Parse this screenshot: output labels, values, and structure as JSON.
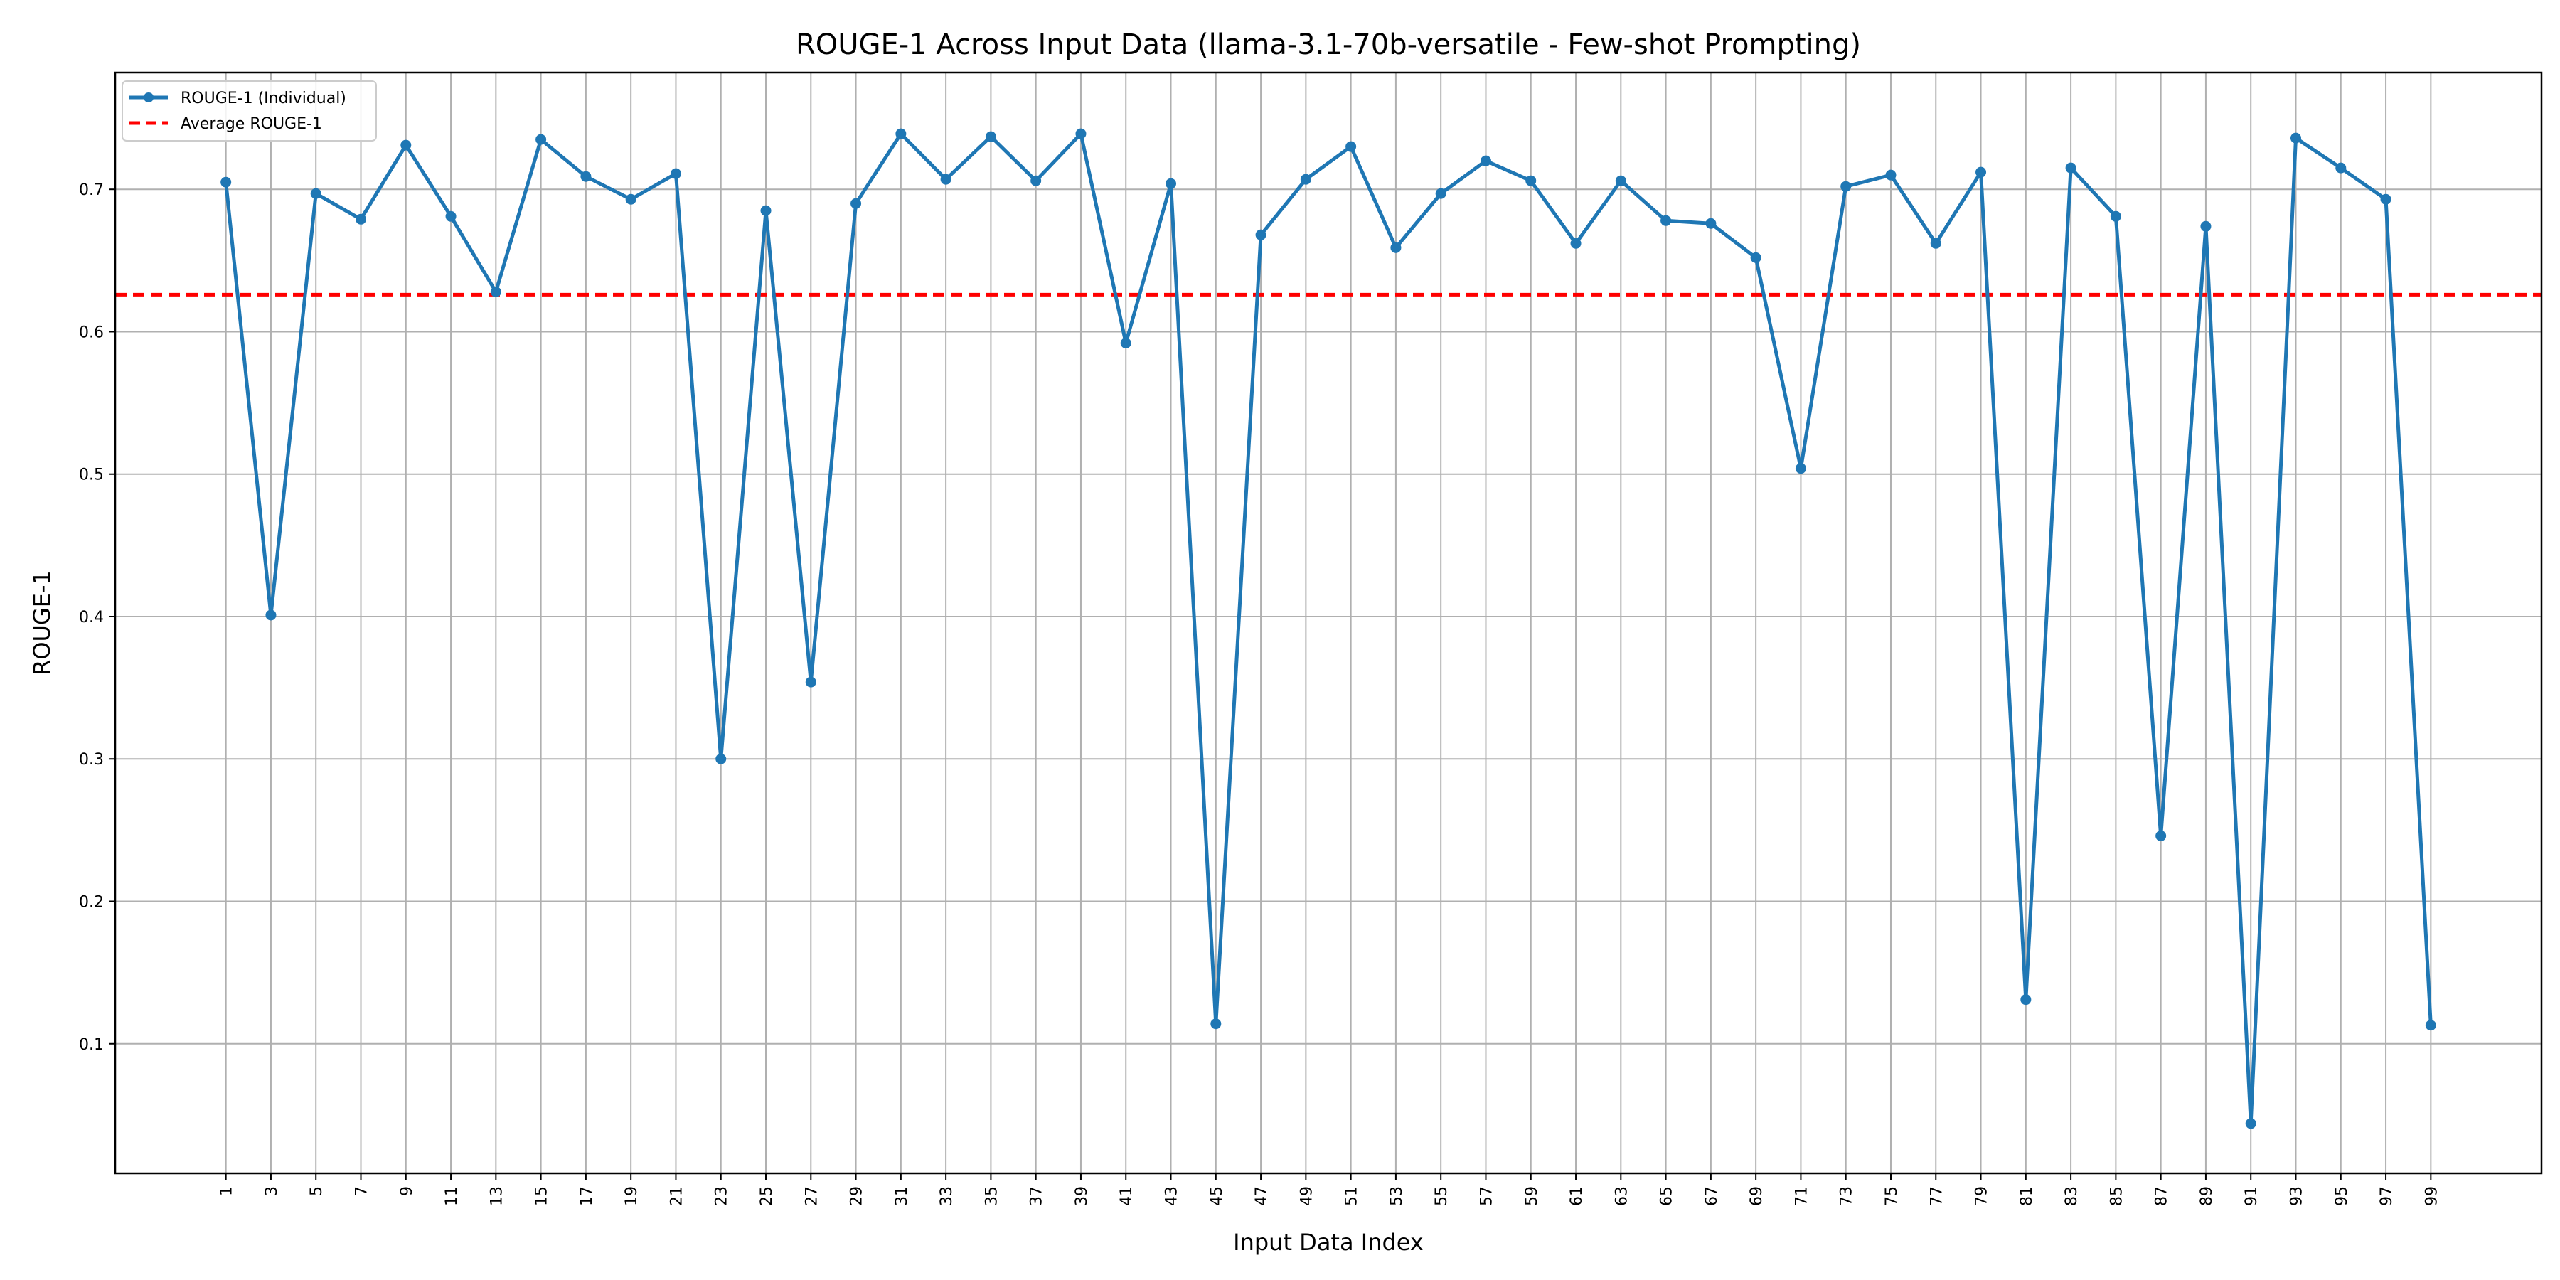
{
  "chart_data": {
    "type": "line",
    "title": "ROUGE-1 Across Input Data (llama-3.1-70b-versatile - Few-shot Prompting)",
    "xlabel": "Input Data Index",
    "ylabel": "ROUGE-1",
    "x": [
      1,
      3,
      5,
      7,
      9,
      11,
      13,
      15,
      17,
      19,
      21,
      23,
      25,
      27,
      29,
      31,
      33,
      35,
      37,
      39,
      41,
      43,
      45,
      47,
      49,
      51,
      53,
      55,
      57,
      59,
      61,
      63,
      65,
      67,
      69,
      71,
      73,
      75,
      77,
      79,
      81,
      83,
      85,
      87,
      89,
      91,
      93,
      95,
      97,
      99
    ],
    "x_ticks": [
      "1",
      "3",
      "5",
      "7",
      "9",
      "11",
      "13",
      "15",
      "17",
      "19",
      "21",
      "23",
      "25",
      "27",
      "29",
      "31",
      "33",
      "35",
      "37",
      "39",
      "41",
      "43",
      "45",
      "47",
      "49",
      "51",
      "53",
      "55",
      "57",
      "59",
      "61",
      "63",
      "65",
      "67",
      "69",
      "71",
      "73",
      "75",
      "77",
      "79",
      "81",
      "83",
      "85",
      "87",
      "89",
      "91",
      "93",
      "95",
      "97",
      "99"
    ],
    "y_ticks": [
      "0.1",
      "0.2",
      "0.3",
      "0.4",
      "0.5",
      "0.6",
      "0.7"
    ],
    "y_tick_values": [
      0.1,
      0.2,
      0.3,
      0.4,
      0.5,
      0.6,
      0.7
    ],
    "xlim": [
      -3.92,
      103.92
    ],
    "ylim": [
      0.009,
      0.782
    ],
    "grid": true,
    "legend_position": "top-left",
    "series": [
      {
        "name": "ROUGE-1 (Individual)",
        "color": "#1f77b4",
        "marker": "circle",
        "values": [
          0.705,
          0.401,
          0.697,
          0.679,
          0.731,
          0.681,
          0.628,
          0.735,
          0.709,
          0.693,
          0.711,
          0.3,
          0.685,
          0.354,
          0.69,
          0.739,
          0.707,
          0.737,
          0.706,
          0.739,
          0.592,
          0.704,
          0.114,
          0.668,
          0.707,
          0.73,
          0.659,
          0.697,
          0.72,
          0.706,
          0.662,
          0.706,
          0.678,
          0.676,
          0.652,
          0.504,
          0.702,
          0.71,
          0.662,
          0.712,
          0.131,
          0.715,
          0.681,
          0.246,
          0.674,
          0.044,
          0.736,
          0.715,
          0.693,
          0.113
        ]
      }
    ],
    "average": {
      "name": "Average ROUGE-1",
      "value": 0.626,
      "color": "#ff0000",
      "style": "dashed"
    }
  }
}
